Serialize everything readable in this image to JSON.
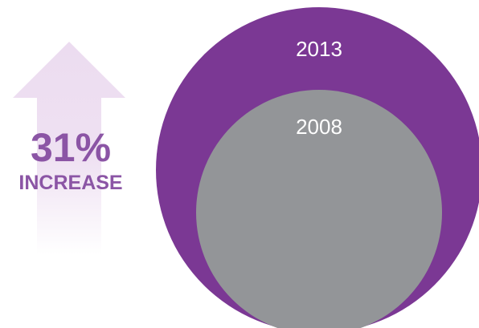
{
  "chart_data": {
    "type": "area",
    "subtype": "nested-circle-comparison",
    "series": [
      {
        "name": "2013",
        "relative_value": 1.31
      },
      {
        "name": "2008",
        "relative_value": 1.0
      }
    ],
    "callout": {
      "value": "31%",
      "label": "INCREASE",
      "icon": "up-arrow-icon"
    }
  },
  "colors": {
    "outer_circle": "#7b3894",
    "inner_circle": "#939598",
    "arrow": "#ecdcf0",
    "callout_text": "#8b55a5",
    "year_label": "#ffffff"
  }
}
